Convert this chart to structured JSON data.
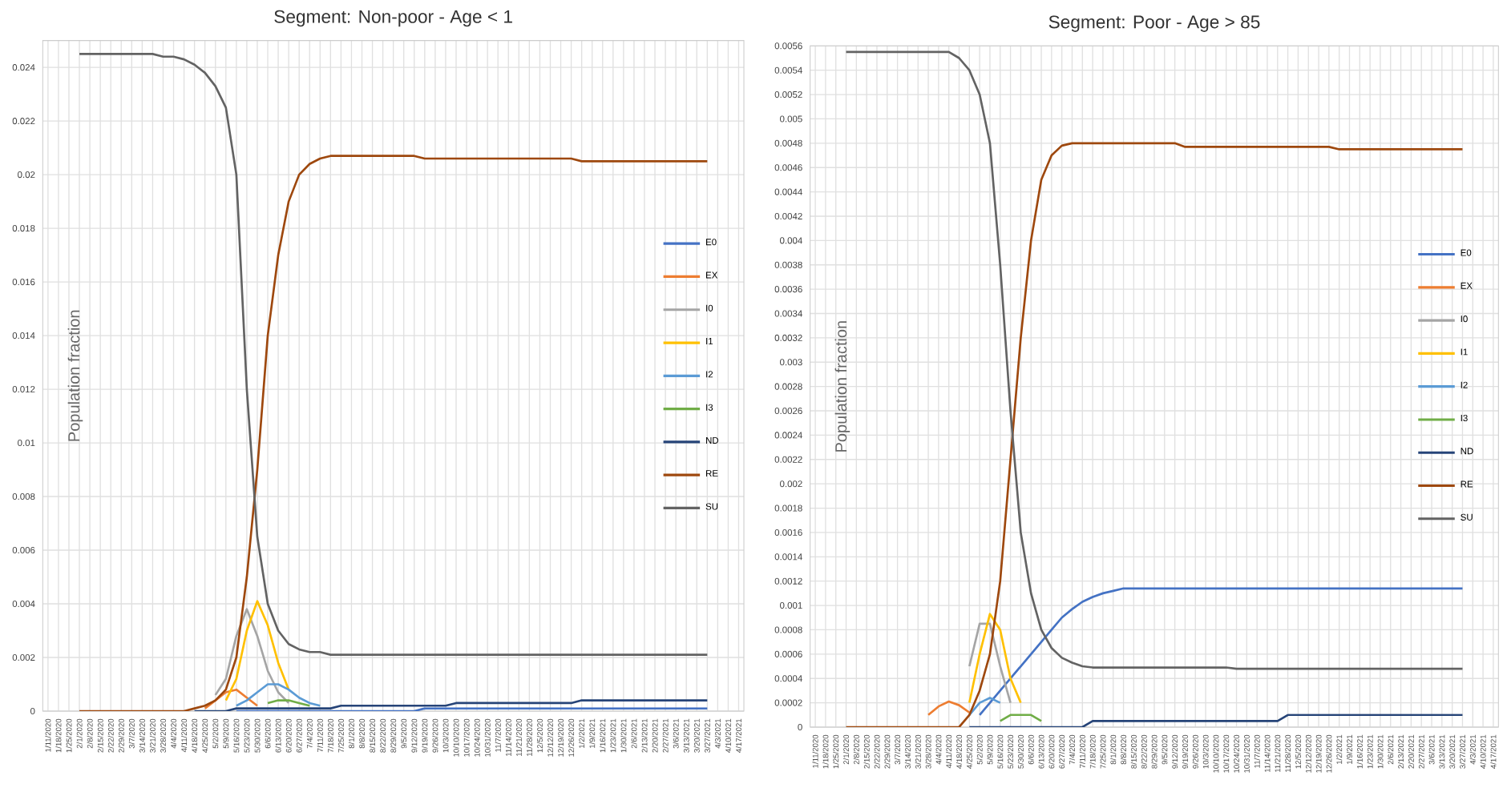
{
  "chart_data": [
    {
      "type": "line",
      "title": "Segment: Non-poor - Age < 1",
      "ylabel": "Population fraction",
      "grid": true,
      "legend": "right",
      "marker": "none",
      "categories": [
        "1/11/2020",
        "1/18/2020",
        "1/25/2020",
        "2/1/2020",
        "2/8/2020",
        "2/15/2020",
        "2/22/2020",
        "2/29/2020",
        "3/7/2020",
        "3/14/2020",
        "3/21/2020",
        "3/28/2020",
        "4/4/2020",
        "4/11/2020",
        "4/18/2020",
        "4/25/2020",
        "5/2/2020",
        "5/9/2020",
        "5/16/2020",
        "5/23/2020",
        "5/30/2020",
        "6/6/2020",
        "6/13/2020",
        "6/20/2020",
        "6/27/2020",
        "7/4/2020",
        "7/11/2020",
        "7/18/2020",
        "7/25/2020",
        "8/1/2020",
        "8/8/2020",
        "8/15/2020",
        "8/22/2020",
        "8/29/2020",
        "9/5/2020",
        "9/12/2020",
        "9/19/2020",
        "9/26/2020",
        "10/3/2020",
        "10/10/2020",
        "10/17/2020",
        "10/24/2020",
        "10/31/2020",
        "11/7/2020",
        "11/14/2020",
        "11/21/2020",
        "11/28/2020",
        "12/5/2020",
        "12/12/2020",
        "12/19/2020",
        "12/26/2020",
        "1/2/2021",
        "1/9/2021",
        "1/16/2021",
        "1/23/2021",
        "1/30/2021",
        "2/6/2021",
        "2/13/2021",
        "2/20/2021",
        "2/27/2021",
        "3/6/2021",
        "3/13/2021",
        "3/20/2021",
        "3/27/2021",
        "4/3/2021",
        "4/10/2021",
        "4/17/2021"
      ],
      "ylim": [
        0,
        0.025
      ],
      "yticks": [
        0,
        0.002,
        0.004,
        0.006,
        0.008,
        0.01,
        0.012,
        0.014,
        0.016,
        0.018,
        0.02,
        0.022,
        0.024
      ],
      "series": [
        {
          "name": "E0",
          "color": "#4472c4",
          "values": [
            null,
            null,
            null,
            null,
            null,
            null,
            null,
            null,
            null,
            null,
            null,
            null,
            null,
            null,
            null,
            null,
            null,
            null,
            0,
            0,
            0,
            0,
            0,
            0,
            0,
            0,
            0,
            0,
            0,
            0,
            0,
            0,
            0,
            0,
            0,
            0,
            0.0001,
            0.0001,
            0.0001,
            0.0001,
            0.0001,
            0.0001,
            0.0001,
            0.0001,
            0.0001,
            0.0001,
            0.0001,
            0.0001,
            0.0001,
            0.0001,
            0.0001,
            0.0001,
            0.0001,
            0.0001,
            0.0001,
            0.0001,
            0.0001,
            0.0001,
            0.0001,
            0.0001,
            0.0001,
            0.0001,
            0.0001,
            0.0001,
            null,
            null,
            null
          ]
        },
        {
          "name": "EX",
          "color": "#ed7d31",
          "values": [
            null,
            null,
            null,
            null,
            null,
            null,
            null,
            null,
            null,
            null,
            null,
            null,
            null,
            null,
            null,
            0.0001,
            0.0004,
            0.0007,
            0.0008,
            0.0005,
            0.0002,
            null,
            null,
            null,
            null,
            null,
            null,
            null,
            null,
            null,
            null,
            null,
            null,
            null,
            null,
            null,
            null,
            null,
            null,
            null,
            null,
            null,
            null,
            null,
            null,
            null,
            null,
            null,
            null,
            null,
            null,
            null,
            null,
            null,
            null,
            null,
            null,
            null,
            null,
            null,
            null,
            null,
            null,
            null,
            null,
            null,
            null
          ]
        },
        {
          "name": "I0",
          "color": "#a5a5a5",
          "values": [
            null,
            null,
            null,
            null,
            null,
            null,
            null,
            null,
            null,
            null,
            null,
            null,
            null,
            null,
            null,
            null,
            0.0006,
            0.0012,
            0.0028,
            0.0038,
            0.0028,
            0.0015,
            0.0007,
            0.0003,
            null,
            null,
            null,
            null,
            null,
            null,
            null,
            null,
            null,
            null,
            null,
            null,
            null,
            null,
            null,
            null,
            null,
            null,
            null,
            null,
            null,
            null,
            null,
            null,
            null,
            null,
            null,
            null,
            null,
            null,
            null,
            null,
            null,
            null,
            null,
            null,
            null,
            null,
            null,
            null,
            null,
            null,
            null
          ]
        },
        {
          "name": "I1",
          "color": "#ffc000",
          "values": [
            null,
            null,
            null,
            null,
            null,
            null,
            null,
            null,
            null,
            null,
            null,
            null,
            null,
            null,
            null,
            null,
            null,
            0.0004,
            0.0012,
            0.003,
            0.0041,
            0.0032,
            0.0018,
            0.0008,
            null,
            null,
            null,
            null,
            null,
            null,
            null,
            null,
            null,
            null,
            null,
            null,
            null,
            null,
            null,
            null,
            null,
            null,
            null,
            null,
            null,
            null,
            null,
            null,
            null,
            null,
            null,
            null,
            null,
            null,
            null,
            null,
            null,
            null,
            null,
            null,
            null,
            null,
            null,
            null,
            null,
            null,
            null
          ]
        },
        {
          "name": "I2",
          "color": "#5b9bd5",
          "values": [
            null,
            null,
            null,
            null,
            null,
            null,
            null,
            null,
            null,
            null,
            null,
            null,
            null,
            null,
            null,
            null,
            null,
            null,
            0.0002,
            0.0004,
            0.0007,
            0.001,
            0.001,
            0.0008,
            0.0005,
            0.0003,
            0.0002,
            null,
            null,
            null,
            null,
            null,
            null,
            null,
            null,
            null,
            null,
            null,
            null,
            null,
            null,
            null,
            null,
            null,
            null,
            null,
            null,
            null,
            null,
            null,
            null,
            null,
            null,
            null,
            null,
            null,
            null,
            null,
            null,
            null,
            null,
            null,
            null,
            null,
            null,
            null,
            null
          ]
        },
        {
          "name": "I3",
          "color": "#70ad47",
          "values": [
            null,
            null,
            null,
            null,
            null,
            null,
            null,
            null,
            null,
            null,
            null,
            null,
            null,
            null,
            null,
            null,
            null,
            null,
            null,
            null,
            null,
            0.0003,
            0.0004,
            0.0004,
            0.0003,
            0.0002,
            null,
            null,
            null,
            null,
            null,
            null,
            null,
            null,
            null,
            null,
            null,
            null,
            null,
            null,
            null,
            null,
            null,
            null,
            null,
            null,
            null,
            null,
            null,
            null,
            null,
            null,
            null,
            null,
            null,
            null,
            null,
            null,
            null,
            null,
            null,
            null,
            null,
            null,
            null,
            null,
            null
          ]
        },
        {
          "name": "ND",
          "color": "#264478",
          "values": [
            null,
            null,
            null,
            null,
            null,
            null,
            null,
            null,
            null,
            null,
            null,
            null,
            null,
            null,
            0,
            0,
            0,
            0,
            0.0001,
            0.0001,
            0.0001,
            0.0001,
            0.0001,
            0.0001,
            0.0001,
            0.0001,
            0.0001,
            0.0001,
            0.0002,
            0.0002,
            0.0002,
            0.0002,
            0.0002,
            0.0002,
            0.0002,
            0.0002,
            0.0002,
            0.0002,
            0.0002,
            0.0003,
            0.0003,
            0.0003,
            0.0003,
            0.0003,
            0.0003,
            0.0003,
            0.0003,
            0.0003,
            0.0003,
            0.0003,
            0.0003,
            0.0004,
            0.0004,
            0.0004,
            0.0004,
            0.0004,
            0.0004,
            0.0004,
            0.0004,
            0.0004,
            0.0004,
            0.0004,
            0.0004,
            0.0004,
            null,
            null,
            null
          ]
        },
        {
          "name": "RE",
          "color": "#9e480e",
          "values": [
            null,
            null,
            null,
            0,
            0,
            0,
            0,
            0,
            0,
            0,
            0,
            0,
            0,
            0,
            0.0001,
            0.0002,
            0.0004,
            0.0008,
            0.002,
            0.005,
            0.009,
            0.014,
            0.017,
            0.019,
            0.02,
            0.0204,
            0.0206,
            0.0207,
            0.0207,
            0.0207,
            0.0207,
            0.0207,
            0.0207,
            0.0207,
            0.0207,
            0.0207,
            0.0206,
            0.0206,
            0.0206,
            0.0206,
            0.0206,
            0.0206,
            0.0206,
            0.0206,
            0.0206,
            0.0206,
            0.0206,
            0.0206,
            0.0206,
            0.0206,
            0.0206,
            0.0205,
            0.0205,
            0.0205,
            0.0205,
            0.0205,
            0.0205,
            0.0205,
            0.0205,
            0.0205,
            0.0205,
            0.0205,
            0.0205,
            0.0205,
            null,
            null,
            null
          ]
        },
        {
          "name": "SU",
          "color": "#636363",
          "values": [
            null,
            null,
            null,
            0.0245,
            0.0245,
            0.0245,
            0.0245,
            0.0245,
            0.0245,
            0.0245,
            0.0245,
            0.0244,
            0.0244,
            0.0243,
            0.0241,
            0.0238,
            0.0233,
            0.0225,
            0.02,
            0.012,
            0.0065,
            0.004,
            0.003,
            0.0025,
            0.0023,
            0.0022,
            0.0022,
            0.0021,
            0.0021,
            0.0021,
            0.0021,
            0.0021,
            0.0021,
            0.0021,
            0.0021,
            0.0021,
            0.0021,
            0.0021,
            0.0021,
            0.0021,
            0.0021,
            0.0021,
            0.0021,
            0.0021,
            0.0021,
            0.0021,
            0.0021,
            0.0021,
            0.0021,
            0.0021,
            0.0021,
            0.0021,
            0.0021,
            0.0021,
            0.0021,
            0.0021,
            0.0021,
            0.0021,
            0.0021,
            0.0021,
            0.0021,
            0.0021,
            0.0021,
            0.0021,
            null,
            null,
            null
          ]
        }
      ]
    },
    {
      "type": "line",
      "title": "Segment: Poor - Age > 85",
      "ylabel": "Population fraction",
      "grid": true,
      "legend": "right",
      "marker": "none",
      "categories": [
        "1/11/2020",
        "1/18/2020",
        "1/25/2020",
        "2/1/2020",
        "2/8/2020",
        "2/15/2020",
        "2/22/2020",
        "2/29/2020",
        "3/7/2020",
        "3/14/2020",
        "3/21/2020",
        "3/28/2020",
        "4/4/2020",
        "4/11/2020",
        "4/18/2020",
        "4/25/2020",
        "5/2/2020",
        "5/9/2020",
        "5/16/2020",
        "5/23/2020",
        "5/30/2020",
        "6/6/2020",
        "6/13/2020",
        "6/20/2020",
        "6/27/2020",
        "7/4/2020",
        "7/11/2020",
        "7/18/2020",
        "7/25/2020",
        "8/1/2020",
        "8/8/2020",
        "8/15/2020",
        "8/22/2020",
        "8/29/2020",
        "9/5/2020",
        "9/12/2020",
        "9/19/2020",
        "9/26/2020",
        "10/3/2020",
        "10/10/2020",
        "10/17/2020",
        "10/24/2020",
        "10/31/2020",
        "11/7/2020",
        "11/14/2020",
        "11/21/2020",
        "11/28/2020",
        "12/5/2020",
        "12/12/2020",
        "12/19/2020",
        "12/26/2020",
        "1/2/2021",
        "1/9/2021",
        "1/16/2021",
        "1/23/2021",
        "1/30/2021",
        "2/6/2021",
        "2/13/2021",
        "2/20/2021",
        "2/27/2021",
        "3/6/2021",
        "3/13/2021",
        "3/20/2021",
        "3/27/2021",
        "4/3/2021",
        "4/10/2021",
        "4/17/2021"
      ],
      "ylim": [
        0,
        0.0056
      ],
      "yticks": [
        0,
        0.0002,
        0.0004,
        0.0006,
        0.0008,
        0.001,
        0.0012,
        0.0014,
        0.0016,
        0.0018,
        0.002,
        0.0022,
        0.0024,
        0.0026,
        0.0028,
        0.003,
        0.0032,
        0.0034,
        0.0036,
        0.0038,
        0.004,
        0.0042,
        0.0044,
        0.0046,
        0.0048,
        0.005,
        0.0052,
        0.0054,
        0.0056
      ],
      "series": [
        {
          "name": "E0",
          "color": "#4472c4",
          "values": [
            null,
            null,
            null,
            null,
            null,
            null,
            null,
            null,
            null,
            null,
            null,
            null,
            null,
            null,
            null,
            null,
            0.0001,
            0.0002,
            0.0003,
            0.0004,
            0.0005,
            0.0006,
            0.0007,
            0.0008,
            0.0009,
            0.00097,
            0.00103,
            0.00107,
            0.0011,
            0.00112,
            0.00114,
            0.00114,
            0.00114,
            0.00114,
            0.00114,
            0.00114,
            0.00114,
            0.00114,
            0.00114,
            0.00114,
            0.00114,
            0.00114,
            0.00114,
            0.00114,
            0.00114,
            0.00114,
            0.00114,
            0.00114,
            0.00114,
            0.00114,
            0.00114,
            0.00114,
            0.00114,
            0.00114,
            0.00114,
            0.00114,
            0.00114,
            0.00114,
            0.00114,
            0.00114,
            0.00114,
            0.00114,
            0.00114,
            0.00114,
            null,
            null,
            null
          ]
        },
        {
          "name": "EX",
          "color": "#ed7d31",
          "values": [
            null,
            null,
            null,
            null,
            null,
            null,
            null,
            null,
            null,
            null,
            null,
            0.0001,
            0.00017,
            0.00021,
            0.00018,
            0.00012,
            null,
            null,
            null,
            null,
            null,
            null,
            null,
            null,
            null,
            null,
            null,
            null,
            null,
            null,
            null,
            null,
            null,
            null,
            null,
            null,
            null,
            null,
            null,
            null,
            null,
            null,
            null,
            null,
            null,
            null,
            null,
            null,
            null,
            null,
            null,
            null,
            null,
            null,
            null,
            null,
            null,
            null,
            null,
            null,
            null,
            null,
            null,
            null,
            null,
            null,
            null
          ]
        },
        {
          "name": "I0",
          "color": "#a5a5a5",
          "values": [
            null,
            null,
            null,
            null,
            null,
            null,
            null,
            null,
            null,
            null,
            null,
            null,
            null,
            null,
            null,
            0.0005,
            0.00085,
            0.00085,
            0.0005,
            0.0002,
            null,
            null,
            null,
            null,
            null,
            null,
            null,
            null,
            null,
            null,
            null,
            null,
            null,
            null,
            null,
            null,
            null,
            null,
            null,
            null,
            null,
            null,
            null,
            null,
            null,
            null,
            null,
            null,
            null,
            null,
            null,
            null,
            null,
            null,
            null,
            null,
            null,
            null,
            null,
            null,
            null,
            null,
            null,
            null,
            null,
            null,
            null
          ]
        },
        {
          "name": "I1",
          "color": "#ffc000",
          "values": [
            null,
            null,
            null,
            null,
            null,
            null,
            null,
            null,
            null,
            null,
            null,
            null,
            null,
            null,
            null,
            0.0002,
            0.0006,
            0.00093,
            0.0008,
            0.0004,
            0.0002,
            null,
            null,
            null,
            null,
            null,
            null,
            null,
            null,
            null,
            null,
            null,
            null,
            null,
            null,
            null,
            null,
            null,
            null,
            null,
            null,
            null,
            null,
            null,
            null,
            null,
            null,
            null,
            null,
            null,
            null,
            null,
            null,
            null,
            null,
            null,
            null,
            null,
            null,
            null,
            null,
            null,
            null,
            null,
            null,
            null,
            null
          ]
        },
        {
          "name": "I2",
          "color": "#5b9bd5",
          "values": [
            null,
            null,
            null,
            null,
            null,
            null,
            null,
            null,
            null,
            null,
            null,
            null,
            null,
            null,
            null,
            0.0001,
            0.0002,
            0.00024,
            0.0002,
            null,
            null,
            null,
            null,
            null,
            null,
            null,
            null,
            null,
            null,
            null,
            null,
            null,
            null,
            null,
            null,
            null,
            null,
            null,
            null,
            null,
            null,
            null,
            null,
            null,
            null,
            null,
            null,
            null,
            null,
            null,
            null,
            null,
            null,
            null,
            null,
            null,
            null,
            null,
            null,
            null,
            null,
            null,
            null,
            null,
            null,
            null,
            null
          ]
        },
        {
          "name": "I3",
          "color": "#70ad47",
          "values": [
            null,
            null,
            null,
            null,
            null,
            null,
            null,
            null,
            null,
            null,
            null,
            null,
            null,
            null,
            null,
            null,
            null,
            null,
            5e-05,
            0.0001,
            0.0001,
            0.0001,
            5e-05,
            null,
            null,
            null,
            null,
            null,
            null,
            null,
            null,
            null,
            null,
            null,
            null,
            null,
            null,
            null,
            null,
            null,
            null,
            null,
            null,
            null,
            null,
            null,
            null,
            null,
            null,
            null,
            null,
            null,
            null,
            null,
            null,
            null,
            null,
            null,
            null,
            null,
            null,
            null,
            null,
            null,
            null,
            null,
            null
          ]
        },
        {
          "name": "ND",
          "color": "#264478",
          "values": [
            null,
            null,
            null,
            null,
            null,
            null,
            null,
            null,
            null,
            null,
            null,
            null,
            null,
            null,
            null,
            0,
            0,
            0,
            0,
            0,
            0,
            0,
            0,
            0,
            0,
            0,
            0,
            5e-05,
            5e-05,
            5e-05,
            5e-05,
            5e-05,
            5e-05,
            5e-05,
            5e-05,
            5e-05,
            5e-05,
            5e-05,
            5e-05,
            5e-05,
            5e-05,
            5e-05,
            5e-05,
            5e-05,
            5e-05,
            5e-05,
            0.0001,
            0.0001,
            0.0001,
            0.0001,
            0.0001,
            0.0001,
            0.0001,
            0.0001,
            0.0001,
            0.0001,
            0.0001,
            0.0001,
            0.0001,
            0.0001,
            0.0001,
            0.0001,
            0.0001,
            0.0001,
            null,
            null,
            null
          ]
        },
        {
          "name": "RE",
          "color": "#9e480e",
          "values": [
            null,
            null,
            null,
            0,
            0,
            0,
            0,
            0,
            0,
            0,
            0,
            0,
            0,
            0,
            0,
            0.0001,
            0.0003,
            0.0006,
            0.0012,
            0.0022,
            0.0032,
            0.004,
            0.0045,
            0.0047,
            0.00478,
            0.0048,
            0.0048,
            0.0048,
            0.0048,
            0.0048,
            0.0048,
            0.0048,
            0.0048,
            0.0048,
            0.0048,
            0.0048,
            0.00477,
            0.00477,
            0.00477,
            0.00477,
            0.00477,
            0.00477,
            0.00477,
            0.00477,
            0.00477,
            0.00477,
            0.00477,
            0.00477,
            0.00477,
            0.00477,
            0.00477,
            0.00475,
            0.00475,
            0.00475,
            0.00475,
            0.00475,
            0.00475,
            0.00475,
            0.00475,
            0.00475,
            0.00475,
            0.00475,
            0.00475,
            0.00475,
            null,
            null,
            null
          ]
        },
        {
          "name": "SU",
          "color": "#636363",
          "values": [
            null,
            null,
            null,
            0.00555,
            0.00555,
            0.00555,
            0.00555,
            0.00555,
            0.00555,
            0.00555,
            0.00555,
            0.00555,
            0.00555,
            0.00555,
            0.0055,
            0.0054,
            0.0052,
            0.0048,
            0.0038,
            0.0026,
            0.0016,
            0.0011,
            0.0008,
            0.00065,
            0.00057,
            0.00053,
            0.0005,
            0.00049,
            0.00049,
            0.00049,
            0.00049,
            0.00049,
            0.00049,
            0.00049,
            0.00049,
            0.00049,
            0.00049,
            0.00049,
            0.00049,
            0.00049,
            0.00049,
            0.00048,
            0.00048,
            0.00048,
            0.00048,
            0.00048,
            0.00048,
            0.00048,
            0.00048,
            0.00048,
            0.00048,
            0.00048,
            0.00048,
            0.00048,
            0.00048,
            0.00048,
            0.00048,
            0.00048,
            0.00048,
            0.00048,
            0.00048,
            0.00048,
            0.00048,
            0.00048,
            null,
            null,
            null
          ]
        }
      ]
    }
  ]
}
